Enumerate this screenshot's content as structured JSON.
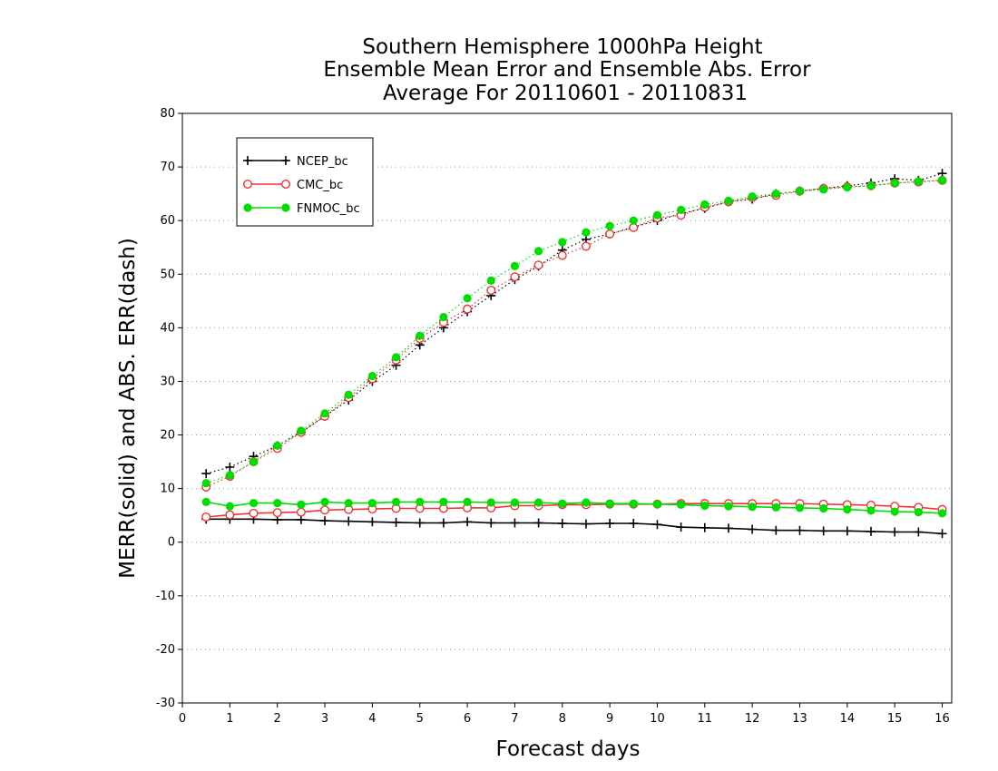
{
  "chart_data": {
    "type": "line",
    "title": [
      "Southern Hemisphere 1000hPa Height",
      "Ensemble Mean Error and Ensemble Abs. Error",
      "Average For 20110601 - 20110831"
    ],
    "xlabel": "Forecast days",
    "ylabel": "MERR(solid) and ABS. ERR(dash)",
    "xlim": [
      0,
      16.2
    ],
    "ylim": [
      -30,
      80
    ],
    "xticks": [
      "0",
      "1",
      "2",
      "3",
      "4",
      "5",
      "6",
      "7",
      "8",
      "9",
      "10",
      "11",
      "12",
      "13",
      "14",
      "15",
      "16"
    ],
    "yticks": [
      "80",
      "70",
      "60",
      "50",
      "40",
      "30",
      "20",
      "10",
      "0",
      "-10",
      "-20",
      "-30"
    ],
    "grid": "horizontal dotted",
    "legend_position": "top-left",
    "x": [
      0.5,
      1,
      1.5,
      2,
      2.5,
      3,
      3.5,
      4,
      4.5,
      5,
      5.5,
      6,
      6.5,
      7,
      7.5,
      8,
      8.5,
      9,
      9.5,
      10,
      10.5,
      11,
      11.5,
      12,
      12.5,
      13,
      13.5,
      14,
      14.5,
      15,
      15.5,
      16
    ],
    "series": [
      {
        "name": "NCEP_bc",
        "color": "#000000",
        "marker": "plus",
        "merr": [
          4.3,
          4.3,
          4.3,
          4.2,
          4.2,
          4.0,
          3.9,
          3.8,
          3.7,
          3.6,
          3.6,
          3.8,
          3.6,
          3.6,
          3.6,
          3.5,
          3.4,
          3.5,
          3.5,
          3.3,
          2.8,
          2.7,
          2.6,
          2.4,
          2.2,
          2.2,
          2.1,
          2.1,
          2.0,
          1.9,
          1.9,
          1.6
        ],
        "abs_err": [
          12.8,
          14.0,
          16.0,
          18.0,
          20.5,
          23.5,
          26.5,
          30.0,
          33.0,
          36.8,
          40.0,
          43.0,
          46.0,
          49.0,
          51.5,
          54.5,
          56.5,
          57.5,
          58.8,
          60.0,
          61.3,
          62.3,
          63.5,
          64.0,
          65.0,
          65.5,
          66.0,
          66.5,
          67.0,
          67.8,
          67.5,
          68.8
        ]
      },
      {
        "name": "CMC_bc",
        "color": "#ee3333",
        "marker": "open-circle",
        "merr": [
          4.7,
          5.1,
          5.4,
          5.5,
          5.6,
          6.0,
          6.1,
          6.2,
          6.3,
          6.3,
          6.3,
          6.4,
          6.4,
          6.8,
          6.8,
          7.0,
          7.0,
          7.1,
          7.1,
          7.1,
          7.2,
          7.2,
          7.2,
          7.2,
          7.2,
          7.2,
          7.1,
          7.0,
          6.9,
          6.7,
          6.5,
          6.1
        ],
        "abs_err": [
          10.3,
          12.3,
          15.0,
          17.5,
          20.5,
          23.5,
          27.0,
          30.5,
          34.0,
          38.0,
          41.0,
          43.5,
          47.0,
          49.5,
          51.7,
          53.5,
          55.2,
          57.5,
          58.7,
          60.5,
          61.0,
          62.5,
          63.5,
          64.3,
          64.7,
          65.5,
          66.0,
          66.3,
          66.5,
          67.0,
          67.2,
          67.5
        ]
      },
      {
        "name": "FNMOC_bc",
        "color": "#00dd00",
        "marker": "filled-circle",
        "merr": [
          7.5,
          6.7,
          7.3,
          7.3,
          7.0,
          7.5,
          7.3,
          7.3,
          7.5,
          7.5,
          7.5,
          7.5,
          7.4,
          7.4,
          7.4,
          7.2,
          7.4,
          7.2,
          7.2,
          7.1,
          7.0,
          6.8,
          6.7,
          6.6,
          6.5,
          6.4,
          6.3,
          6.1,
          5.9,
          5.7,
          5.6,
          5.4
        ],
        "abs_err": [
          11.0,
          12.5,
          15.0,
          18.0,
          20.8,
          24.0,
          27.5,
          31.0,
          34.5,
          38.5,
          42.0,
          45.5,
          48.8,
          51.5,
          54.3,
          56.0,
          57.8,
          59.0,
          60.0,
          61.0,
          62.0,
          63.0,
          63.7,
          64.5,
          65.0,
          65.5,
          65.8,
          66.2,
          66.5,
          67.0,
          67.3,
          67.5
        ]
      }
    ]
  }
}
